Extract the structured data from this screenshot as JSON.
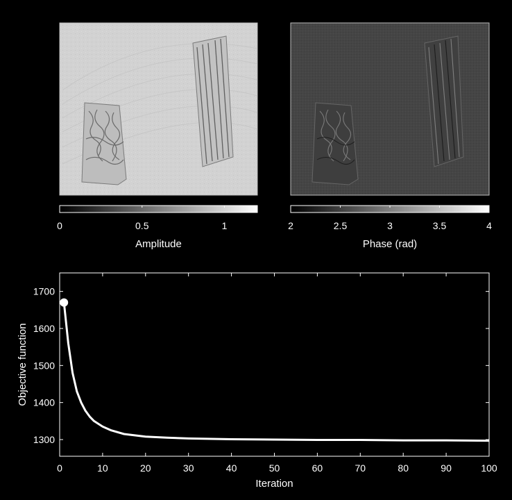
{
  "panels": {
    "amplitude": {
      "colorbar_label": "Amplitude",
      "colorbar_range": [
        0,
        1.2
      ],
      "colorbar_ticks": [
        {
          "value": 0,
          "label": "0"
        },
        {
          "value": 0.5,
          "label": "0.5"
        },
        {
          "value": 1,
          "label": "1"
        }
      ],
      "background_gray": "#d2d2d2"
    },
    "phase": {
      "colorbar_label": "Phase (rad)",
      "colorbar_range": [
        2,
        4
      ],
      "colorbar_ticks": [
        {
          "value": 2,
          "label": "2"
        },
        {
          "value": 2.5,
          "label": "2.5"
        },
        {
          "value": 3,
          "label": "3"
        },
        {
          "value": 3.5,
          "label": "3.5"
        },
        {
          "value": 4,
          "label": "4"
        }
      ],
      "background_gray": "#454545"
    }
  },
  "chart_data": {
    "type": "line",
    "title": "",
    "xlabel": "Iteration",
    "ylabel": "Objective function",
    "xlim": [
      0,
      100
    ],
    "ylim": [
      1255,
      1750
    ],
    "xticks": [
      0,
      10,
      20,
      30,
      40,
      50,
      60,
      70,
      80,
      90,
      100
    ],
    "yticks": [
      1300,
      1400,
      1500,
      1600,
      1700
    ],
    "line_color": "#ffffff",
    "background": "#000000",
    "start_marker": {
      "x": 1,
      "y": 1670
    },
    "series": [
      {
        "x": [
          1,
          2,
          3,
          4,
          5,
          6,
          7,
          8,
          10,
          12,
          15,
          20,
          25,
          30,
          40,
          50,
          60,
          70,
          80,
          90,
          100
        ],
        "values": [
          1670,
          1560,
          1480,
          1430,
          1400,
          1378,
          1362,
          1350,
          1335,
          1325,
          1315,
          1308,
          1305,
          1303,
          1301,
          1300,
          1299,
          1299,
          1298,
          1298,
          1297
        ]
      }
    ]
  }
}
